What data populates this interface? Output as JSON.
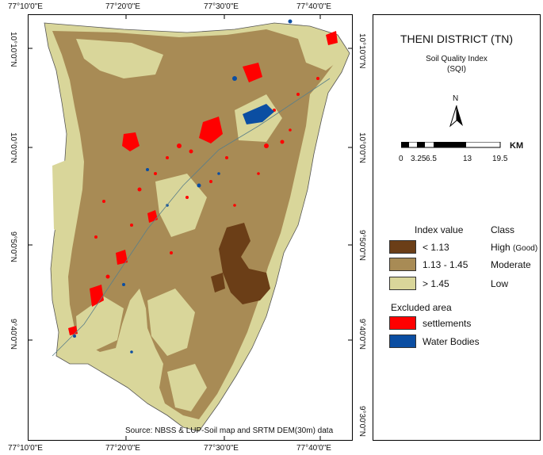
{
  "title": "THENI DISTRICT (TN)",
  "subtitle_line1": "Soil Quality Index",
  "subtitle_line2": "(SQI)",
  "north_label": "N",
  "scale": {
    "unit": "KM",
    "labels": [
      "0",
      "3.25",
      "6.5",
      "13",
      "19.5"
    ]
  },
  "legend": {
    "header_value": "Index value",
    "header_class": "Class",
    "classes": [
      {
        "range": "< 1.13",
        "class": "High",
        "class_note": "(Good)",
        "color": "#6b3e17"
      },
      {
        "range": "1.13 - 1.45",
        "class": "Moderate",
        "color": "#a88b55"
      },
      {
        "range": "> 1.45",
        "class": "Low",
        "color": "#d9d69a"
      }
    ],
    "excluded_title": "Excluded area",
    "excluded": [
      {
        "label": "settlements",
        "color": "#ff0000"
      },
      {
        "label": "Water Bodies",
        "color": "#0b4ea2"
      }
    ]
  },
  "axes": {
    "top": [
      "77°10'0\"E",
      "77°20'0\"E",
      "77°30'0\"E",
      "77°40'0\"E"
    ],
    "bottom": [
      "77°10'0\"E",
      "77°20'0\"E",
      "77°30'0\"E",
      "77°40'0\"E"
    ],
    "left": [
      "10°10'0\"N",
      "10°0'0\"N",
      "9°50'0\"N",
      "9°40'0\"N"
    ],
    "right": [
      "10°10'0\"N",
      "10°0'0\"N",
      "9°50'0\"N",
      "9°40'0\"N",
      "9°30'0\"N"
    ]
  },
  "source": "Source: NBSS & LUP-Soil map and SRTM DEM(30m) data"
}
